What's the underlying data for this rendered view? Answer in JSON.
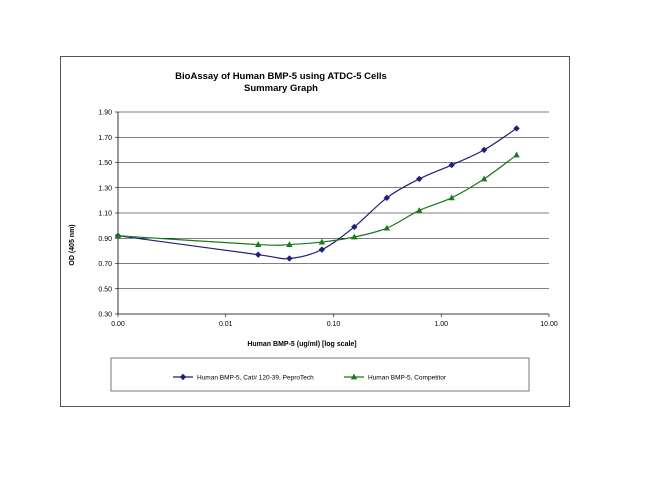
{
  "chart_data": {
    "type": "line",
    "title": "BioAssay of Human BMP-5 using ATDC-5 Cells",
    "subtitle": "Summary Graph",
    "xlabel": "Human BMP-5 (ug/ml) [log scale]",
    "ylabel": "OD (405 nm)",
    "x_scale": "log",
    "xlim": [
      0.001,
      10
    ],
    "ylim": [
      0.3,
      1.9
    ],
    "x_tick_labels": [
      "0.00",
      "0.01",
      "0.10",
      "1.00",
      "10.00"
    ],
    "y_tick_labels": [
      "0.30",
      "0.50",
      "0.70",
      "0.90",
      "1.10",
      "1.30",
      "1.50",
      "1.70",
      "1.90"
    ],
    "grid": "horizontal",
    "legend_position": "bottom",
    "series": [
      {
        "name": "Human BMP-5, Cat# 120-39, PeproTech",
        "color": "#1f1f7a",
        "marker": "diamond",
        "x": [
          0.001,
          0.02,
          0.039,
          0.078,
          0.156,
          0.3125,
          0.625,
          1.25,
          2.5,
          5.0
        ],
        "y": [
          0.92,
          0.77,
          0.74,
          0.81,
          0.99,
          1.22,
          1.37,
          1.48,
          1.6,
          1.77
        ]
      },
      {
        "name": "Human BMP-5, Competitor",
        "color": "#1a7a1a",
        "marker": "triangle",
        "x": [
          0.001,
          0.02,
          0.039,
          0.078,
          0.156,
          0.3125,
          0.625,
          1.25,
          2.5,
          5.0
        ],
        "y": [
          0.92,
          0.85,
          0.85,
          0.87,
          0.91,
          0.98,
          1.12,
          1.22,
          1.37,
          1.56
        ]
      }
    ]
  }
}
